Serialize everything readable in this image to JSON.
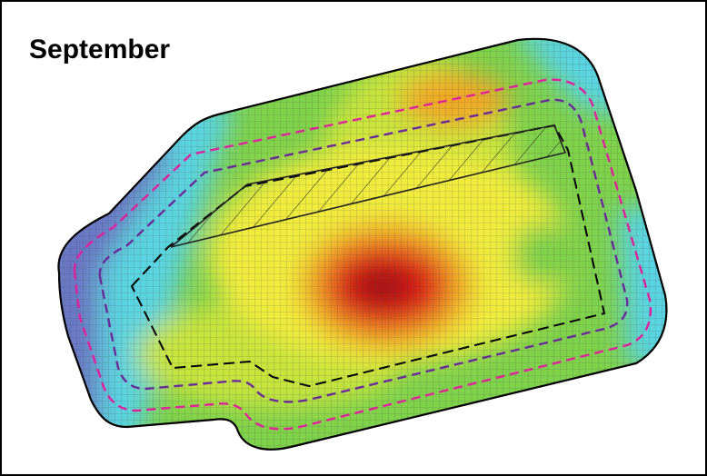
{
  "title": "September"
}
